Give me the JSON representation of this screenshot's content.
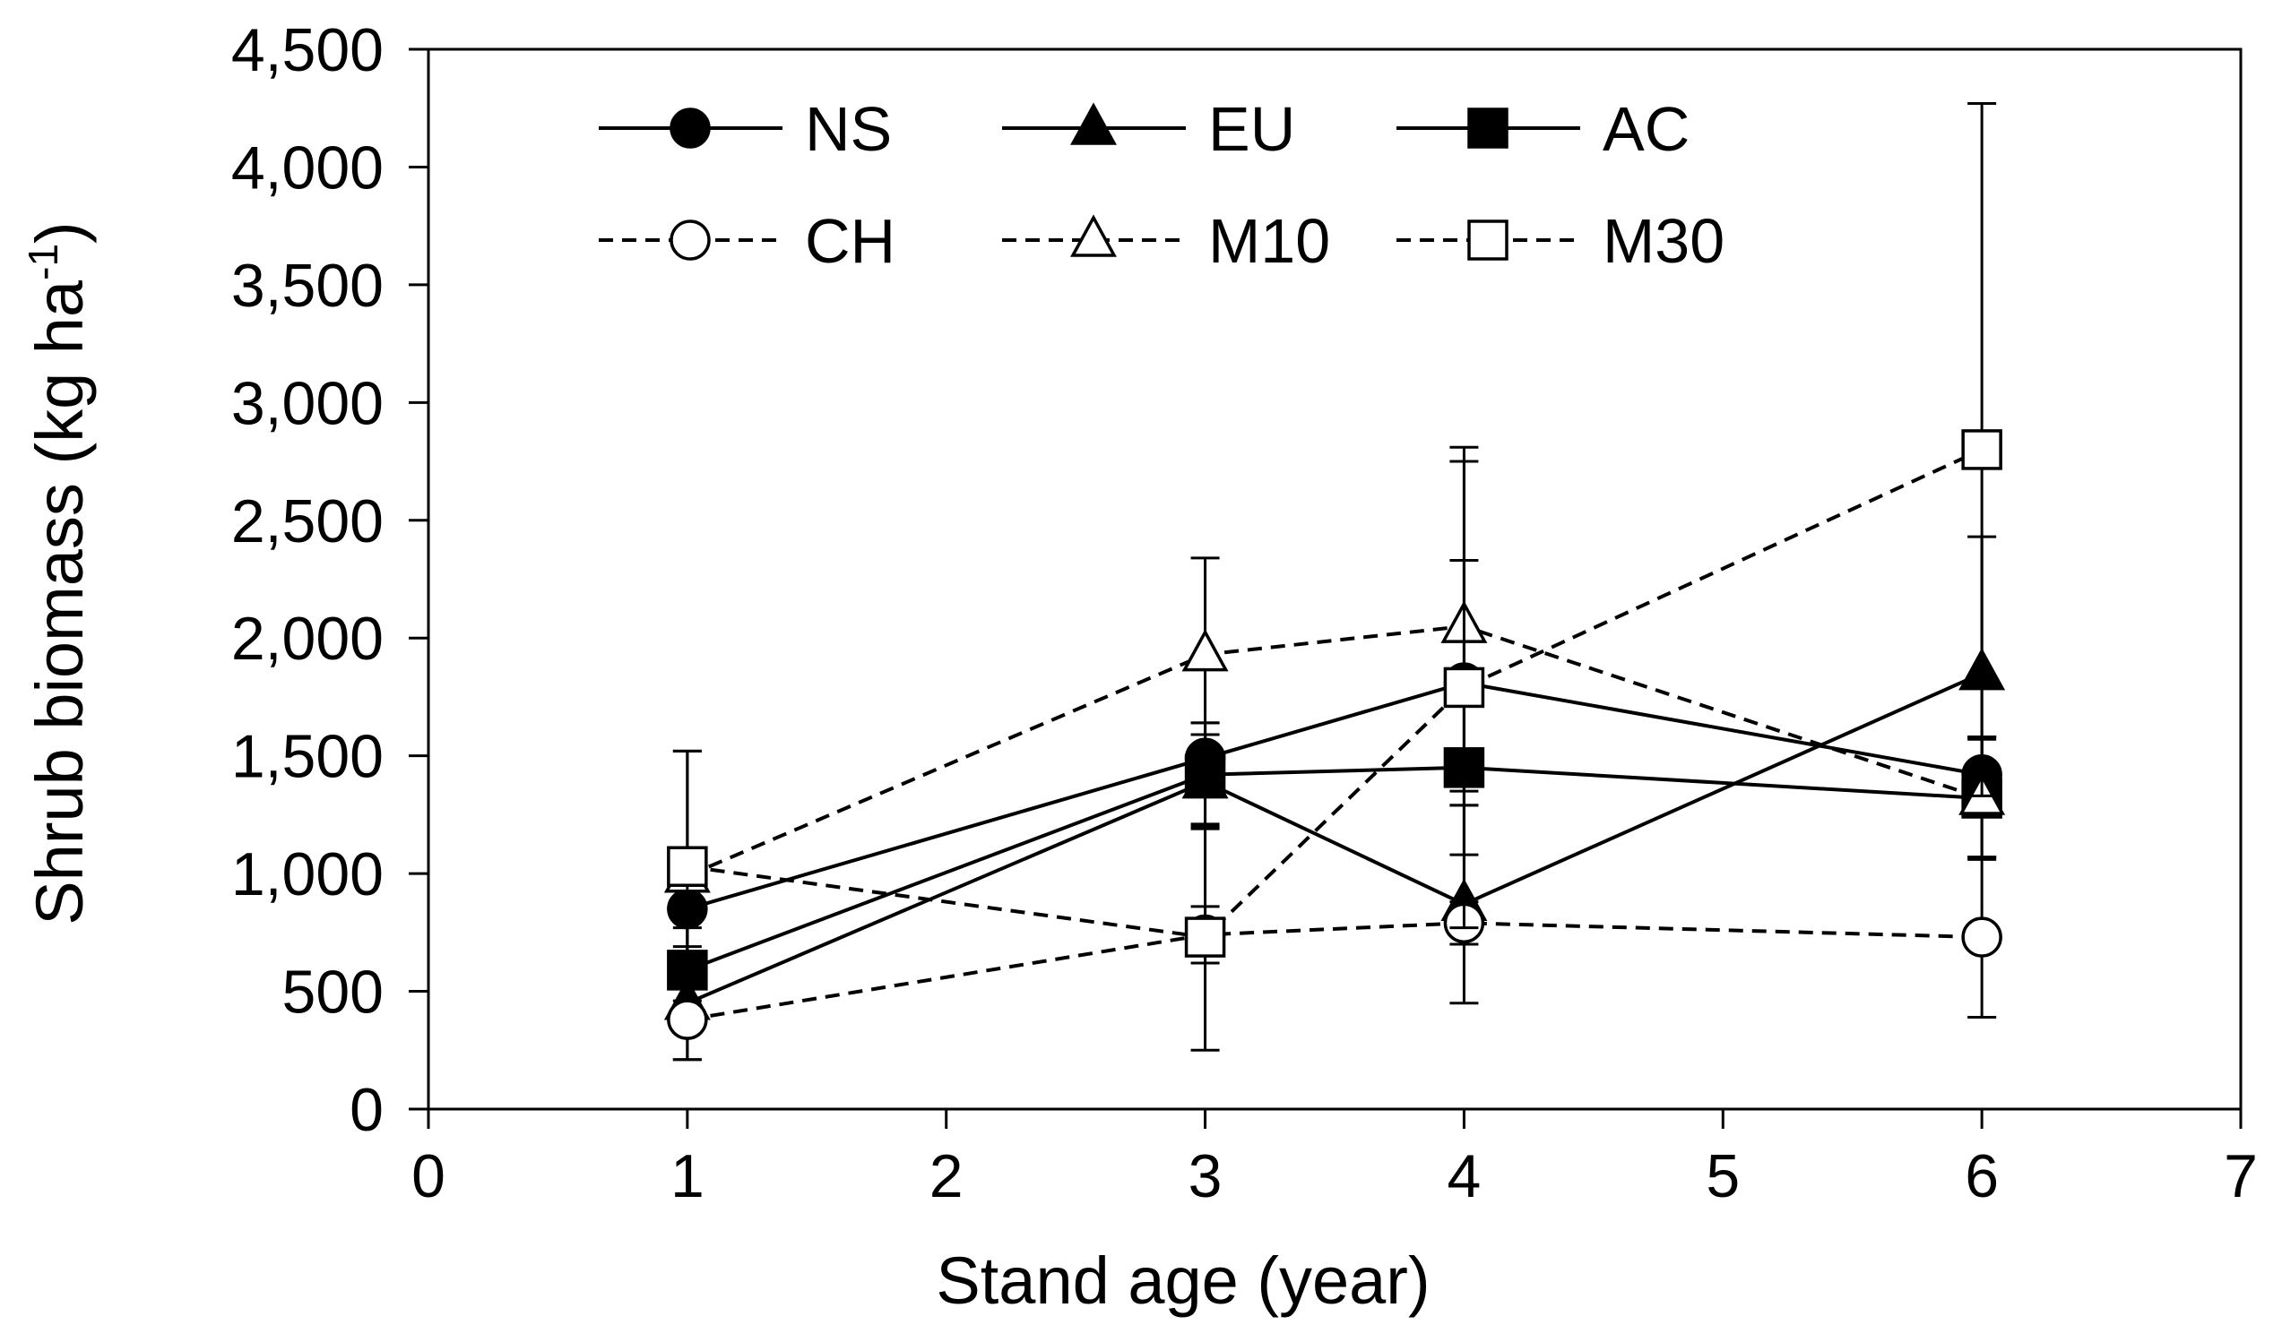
{
  "chart_data": {
    "type": "line",
    "title": "",
    "xlabel": "Stand age (year)",
    "ylabel": "Shrub biomass (kg ha-1)",
    "ylabel_parts": {
      "main": "Shrub biomass (kg ha",
      "sup": "-1",
      "close": ")"
    },
    "xlim": [
      0,
      7
    ],
    "ylim": [
      0,
      4500
    ],
    "xticks": [
      0,
      1,
      2,
      3,
      4,
      5,
      6,
      7
    ],
    "yticks": [
      0,
      500,
      1000,
      1500,
      2000,
      2500,
      3000,
      3500,
      4000,
      4500
    ],
    "xtick_labels": [
      "0",
      "1",
      "2",
      "3",
      "4",
      "5",
      "6",
      "7"
    ],
    "ytick_labels": [
      "0",
      "500",
      "1,000",
      "1,500",
      "2,000",
      "2,500",
      "3,000",
      "3,500",
      "4,000",
      "4,500"
    ],
    "grid": false,
    "legend_position": "top",
    "x": [
      1,
      3,
      4,
      6
    ],
    "series": [
      {
        "name": "NS",
        "marker": "circle",
        "filled": true,
        "dashed": false,
        "values": [
          850,
          1490,
          1810,
          1420
        ],
        "errors": [
          200,
          150,
          520,
          160
        ]
      },
      {
        "name": "EU",
        "marker": "triangle",
        "filled": true,
        "dashed": false,
        "values": [
          450,
          1390,
          870,
          1850
        ],
        "errors": [
          240,
          200,
          420,
          580
        ]
      },
      {
        "name": "AC",
        "marker": "square",
        "filled": true,
        "dashed": false,
        "values": [
          590,
          1420,
          1450,
          1320
        ],
        "errors": [
          180,
          220,
          370,
          260
        ]
      },
      {
        "name": "CH",
        "marker": "circle",
        "filled": false,
        "dashed": true,
        "values": [
          380,
          740,
          790,
          730
        ],
        "errors": [
          170,
          120,
          90,
          340
        ]
      },
      {
        "name": "M10",
        "marker": "triangle",
        "filled": false,
        "dashed": true,
        "values": [
          990,
          1930,
          2050,
          1320
        ],
        "errors": [
          530,
          410,
          700,
          250
        ]
      },
      {
        "name": "M30",
        "marker": "square",
        "filled": false,
        "dashed": true,
        "values": [
          1030,
          730,
          1790,
          2800
        ],
        "errors": [
          490,
          480,
          1020,
          1470
        ]
      }
    ]
  }
}
